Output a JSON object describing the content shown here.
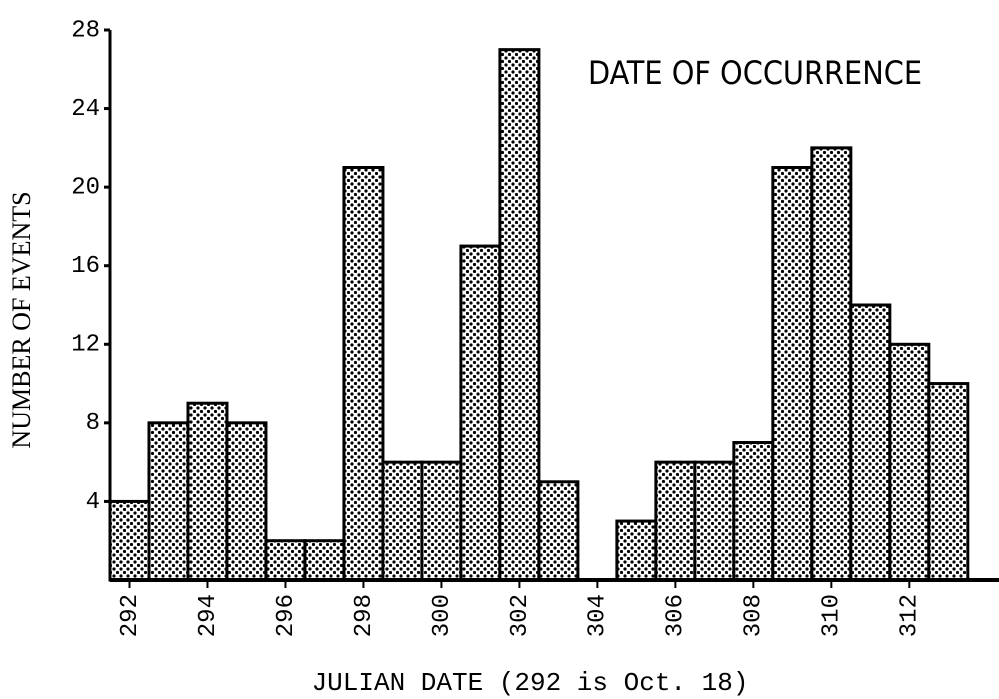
{
  "chart_data": {
    "type": "histogram",
    "title": "DATE OF OCCURRENCE",
    "xlabel": "JULIAN DATE (292 is Oct. 18)",
    "ylabel": "NUMBER OF EVENTS",
    "bins": [
      291.5,
      292.5,
      293.5,
      294.5,
      295.5,
      296.5,
      297.5,
      298.5,
      299.5,
      300.5,
      301.5,
      302.5,
      303.5,
      304.5,
      305.5,
      306.5,
      307.5,
      308.5,
      309.5,
      310.5,
      311.5,
      312.5,
      313.5
    ],
    "values": [
      4,
      8,
      9,
      8,
      2,
      2,
      21,
      6,
      6,
      17,
      27,
      5,
      0,
      3,
      6,
      6,
      7,
      21,
      22,
      14,
      12,
      10
    ],
    "color": "#000000",
    "xlim": [
      291.5,
      314.3
    ],
    "xticks": [
      292,
      294,
      296,
      298,
      300,
      302,
      304,
      306,
      308,
      310,
      312
    ],
    "ylim": [
      0,
      28
    ],
    "yticks": [
      4,
      8,
      12,
      16,
      20,
      24,
      28
    ],
    "grid": false
  }
}
